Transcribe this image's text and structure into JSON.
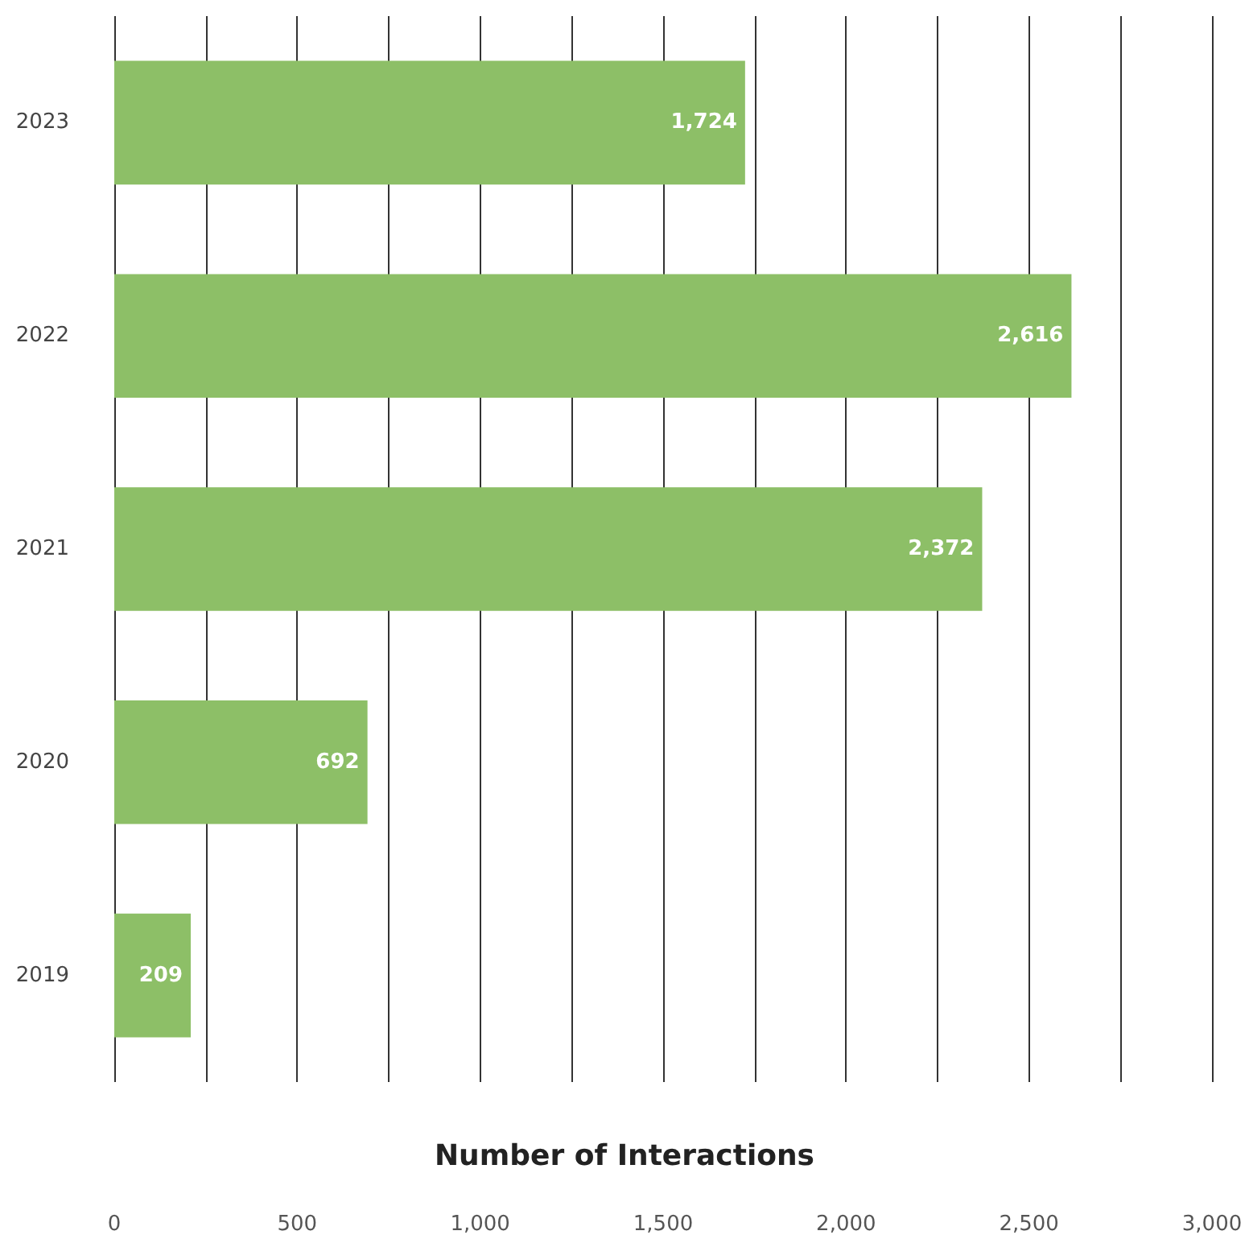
{
  "chart_data": {
    "type": "bar",
    "orientation": "horizontal",
    "xlabel": "Number of Interactions",
    "categories": [
      "2023",
      "2022",
      "2021",
      "2020",
      "2019"
    ],
    "values": [
      1724,
      2616,
      2372,
      692,
      209
    ],
    "color": "#8dbf67",
    "value_labels": [
      "1,724",
      "2,616",
      "2,372",
      "692",
      "209"
    ],
    "xlim": [
      0,
      3000
    ],
    "xticks": [
      0,
      {
        "value": 250,
        "label": null
      },
      {
        "value": 500,
        "label": "500"
      },
      {
        "value": 750,
        "label": null
      },
      {
        "value": 1000,
        "label": "1,000"
      },
      {
        "value": 1250,
        "label": null
      },
      {
        "value": 1500,
        "label": "1,500"
      },
      {
        "value": 1750,
        "label": null
      },
      {
        "value": 2000,
        "label": "2,000"
      },
      {
        "value": 2250,
        "label": null
      },
      {
        "value": 2500,
        "label": "2,500"
      },
      {
        "value": 2750,
        "label": null
      },
      {
        "value": 3000,
        "label": "3,000"
      }
    ],
    "grid": "x"
  }
}
